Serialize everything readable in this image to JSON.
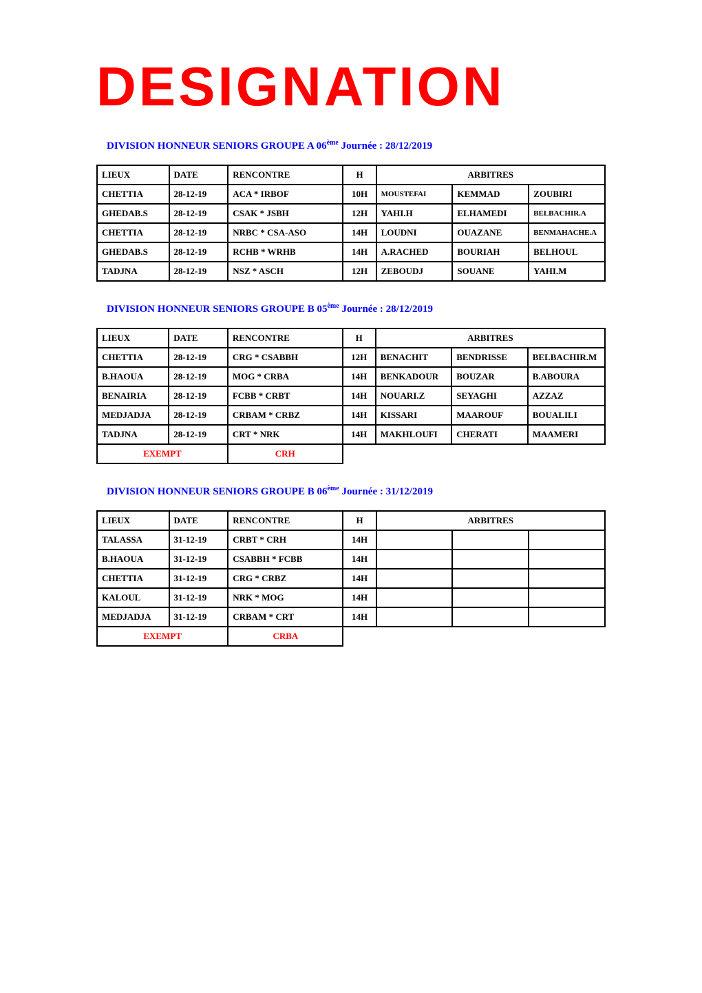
{
  "page_title": "DESIGNATION",
  "sections": [
    {
      "heading_prefix": "DIVISION HONNEUR SENIORS GROUPE A 06",
      "heading_ord": "ème",
      "heading_suffix": " Journée : 28/12/2019",
      "headers": {
        "lieux": "LIEUX",
        "date": "DATE",
        "rencontre": "RENCONTRE",
        "h": "H",
        "arbitres": "ARBITRES"
      },
      "rows": [
        {
          "lieux": "CHETTIA",
          "date": "28-12-19",
          "renc": "ACA  *  IRBOF",
          "h": "10H",
          "a1": "MOUSTEFAI",
          "a1_small": true,
          "a2": "KEMMAD",
          "a3": "ZOUBIRI"
        },
        {
          "lieux": "GHEDAB.S",
          "date": "28-12-19",
          "renc": "CSAK  *  JSBH",
          "h": "12H",
          "a1": "YAHI.H",
          "a2": "ELHAMEDI",
          "a3": "BELBACHIR.A",
          "a3_small": true
        },
        {
          "lieux": "CHETTIA",
          "date": "28-12-19",
          "renc": "NRBC  *  CSA-ASO",
          "h": "14H",
          "a1": "LOUDNI",
          "a2": "OUAZANE",
          "a3": "BENMAHACHE.A",
          "a3_small": true
        },
        {
          "lieux": "GHEDAB.S",
          "date": "28-12-19",
          "renc": "RCHB  *  WRHB",
          "h": "14H",
          "a1": "A.RACHED",
          "a2": "BOURIAH",
          "a3": "BELHOUL"
        },
        {
          "lieux": "TADJNA",
          "date": "28-12-19",
          "renc": "NSZ  *  ASCH",
          "h": "12H",
          "a1": "ZEBOUDJ",
          "a2": "SOUANE",
          "a3": "YAHI.M"
        }
      ]
    },
    {
      "heading_prefix": "DIVISION HONNEUR SENIORS GROUPE B 05",
      "heading_ord": "ème",
      "heading_suffix": " Journée : 28/12/2019",
      "headers": {
        "lieux": "LIEUX",
        "date": "DATE",
        "rencontre": "RENCONTRE",
        "h": "H",
        "arbitres": "ARBITRES"
      },
      "rows": [
        {
          "lieux": "CHETTIA",
          "date": "28-12-19",
          "renc": "CRG  *  CSABBH",
          "h": "12H",
          "a1": "BENACHIT",
          "a2": "BENDRISSE",
          "a3": "BELBACHIR.M"
        },
        {
          "lieux": "B.HAOUA",
          "date": "28-12-19",
          "renc": "MOG  *  CRBA",
          "h": "14H",
          "a1": "BENKADOUR",
          "a2": "BOUZAR",
          "a3": "B.ABOURA"
        },
        {
          "lieux": "BENAIRIA",
          "date": "28-12-19",
          "renc": "FCBB  *  CRBT",
          "h": "14H",
          "a1": "NOUARI.Z",
          "a2": "SEYAGHI",
          "a3": "AZZAZ"
        },
        {
          "lieux": "MEDJADJA",
          "date": "28-12-19",
          "renc": "CRBAM  *  CRBZ",
          "h": "14H",
          "a1": "KISSARI",
          "a2": "MAAROUF",
          "a3": "BOUALILI"
        },
        {
          "lieux": "TADJNA",
          "date": "28-12-19",
          "renc": "CRT  *  NRK",
          "h": "14H",
          "a1": "MAKHLOUFI",
          "a2": "CHERATI",
          "a3": "MAAMERI"
        }
      ],
      "exempt_label": "EXEMPT",
      "exempt_team": "CRH"
    },
    {
      "heading_prefix": "DIVISION HONNEUR SENIORS GROUPE B 06",
      "heading_ord": "ème",
      "heading_suffix": " Journée : 31/12/2019",
      "headers": {
        "lieux": "LIEUX",
        "date": "DATE",
        "rencontre": "RENCONTRE",
        "h": "H",
        "arbitres": "ARBITRES"
      },
      "rows": [
        {
          "lieux": "TALASSA",
          "date": "31-12-19",
          "renc": "CRBT  *  CRH",
          "h": "14H",
          "a1": "",
          "a2": "",
          "a3": ""
        },
        {
          "lieux": "B.HAOUA",
          "date": "31-12-19",
          "renc": "CSABBH  *  FCBB",
          "h": "14H",
          "a1": "",
          "a2": "",
          "a3": ""
        },
        {
          "lieux": "CHETTIA",
          "date": "31-12-19",
          "renc": "CRG  *  CRBZ",
          "h": "14H",
          "a1": "",
          "a2": "",
          "a3": ""
        },
        {
          "lieux": "KALOUL",
          "date": "31-12-19",
          "renc": "NRK  *  MOG",
          "h": "14H",
          "a1": "",
          "a2": "",
          "a3": ""
        },
        {
          "lieux": "MEDJADJA",
          "date": "31-12-19",
          "renc": "CRBAM  *  CRT",
          "h": "14H",
          "a1": "",
          "a2": "",
          "a3": ""
        }
      ],
      "exempt_label": "EXEMPT",
      "exempt_team": "CRBA"
    }
  ],
  "colors": {
    "title": "#ff0000",
    "heading": "#0000ff",
    "exempt": "#ff0000",
    "border": "#000000",
    "background": "#ffffff"
  }
}
